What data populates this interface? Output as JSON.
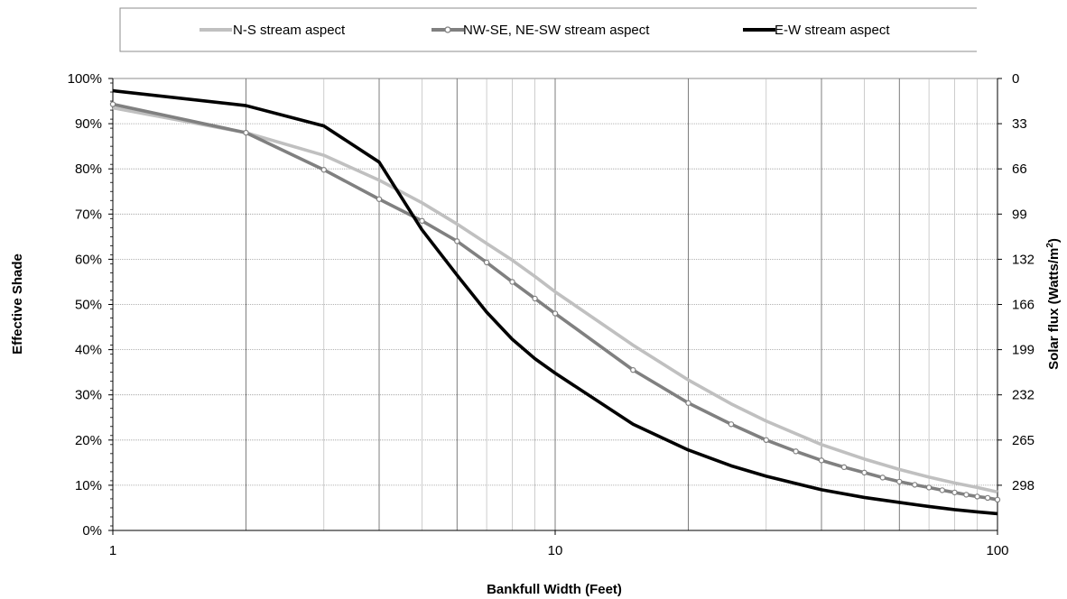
{
  "chart_data": {
    "type": "line",
    "xscale": "log",
    "xlim": [
      1,
      100
    ],
    "ylim": [
      0,
      100
    ],
    "xlabel": "Bankfull Width (Feet)",
    "ylabel": "Effective Shade",
    "y2label_prefix": "Solar flux (Watts/m",
    "y2label_sup": "2",
    "y2label_suffix": ")",
    "x_ticks": [
      "1",
      "10",
      "100"
    ],
    "y_ticks": [
      "0%",
      "10%",
      "20%",
      "30%",
      "40%",
      "50%",
      "60%",
      "70%",
      "80%",
      "90%",
      "100%"
    ],
    "y2_ticks": [
      "0",
      "33",
      "66",
      "99",
      "132",
      "166",
      "199",
      "232",
      "265",
      "298"
    ],
    "grid": true,
    "legend_position": "top",
    "series": [
      {
        "name": "N-S stream aspect",
        "color": "#c0c0c0",
        "marker": "none",
        "x": [
          1,
          2,
          3,
          4,
          5,
          6,
          7,
          8,
          9,
          10,
          15,
          20,
          25,
          30,
          40,
          50,
          60,
          70,
          80,
          90,
          100
        ],
        "y": [
          93.5,
          88,
          83,
          77.5,
          72.5,
          67.8,
          63.5,
          59.8,
          56.2,
          52.8,
          41,
          33.3,
          28,
          24.2,
          19,
          15.8,
          13.5,
          11.8,
          10.5,
          9.5,
          8.5
        ]
      },
      {
        "name": "NW-SE, NE-SW stream aspect",
        "color": "#808080",
        "marker": "circle",
        "x": [
          1,
          2,
          3,
          4,
          5,
          6,
          7,
          8,
          9,
          10,
          15,
          20,
          25,
          30,
          35,
          40,
          45,
          50,
          55,
          60,
          65,
          70,
          75,
          80,
          85,
          90,
          95,
          100
        ],
        "y": [
          94.3,
          88,
          79.8,
          73.3,
          68.5,
          64,
          59.3,
          55,
          51.3,
          48,
          35.5,
          28.2,
          23.5,
          20,
          17.5,
          15.5,
          14,
          12.8,
          11.7,
          10.8,
          10.1,
          9.5,
          8.9,
          8.4,
          7.9,
          7.5,
          7.2,
          6.8
        ]
      },
      {
        "name": "E-W stream aspect",
        "color": "#000000",
        "marker": "none",
        "x": [
          1,
          2,
          3,
          4,
          5,
          6,
          7,
          8,
          9,
          10,
          15,
          20,
          25,
          30,
          40,
          50,
          60,
          70,
          80,
          90,
          100
        ],
        "y": [
          97.3,
          94,
          89.5,
          81.5,
          66.5,
          56.5,
          48.3,
          42.3,
          38,
          34.8,
          23.5,
          17.8,
          14.3,
          12,
          9,
          7.3,
          6.2,
          5.3,
          4.6,
          4.1,
          3.7
        ]
      }
    ]
  }
}
